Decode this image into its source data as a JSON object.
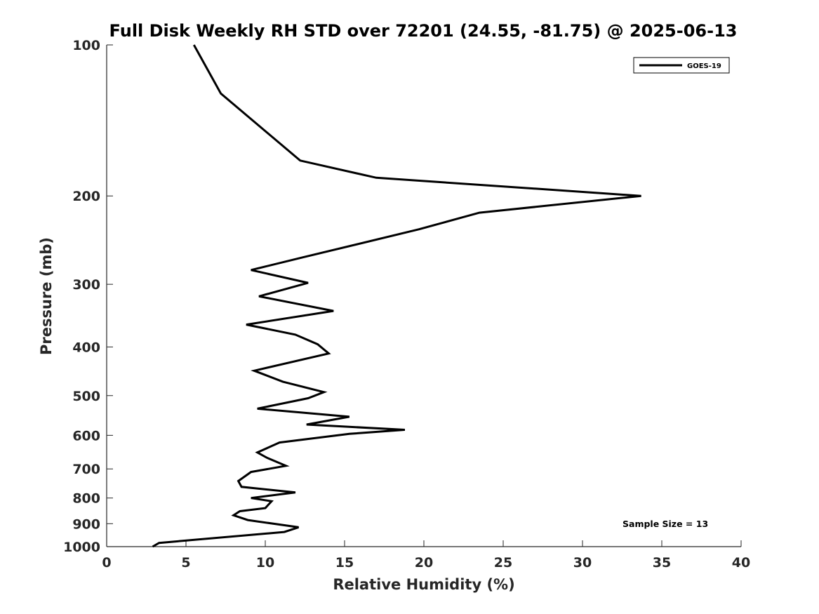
{
  "chart_data": {
    "type": "line",
    "title": "Full Disk Weekly RH STD over 72201 (24.55, -81.75) @ 2025-06-13",
    "xlabel": "Relative Humidity (%)",
    "ylabel": "Pressure (mb)",
    "xlim": [
      0,
      40
    ],
    "ylim": [
      100,
      1000
    ],
    "yscale": "log",
    "y_reversed": true,
    "x_ticks": [
      0,
      5,
      10,
      15,
      20,
      25,
      30,
      35,
      40
    ],
    "y_ticks": [
      100,
      200,
      300,
      400,
      500,
      600,
      700,
      800,
      900,
      1000
    ],
    "grid": false,
    "legend": {
      "placement": "top-right",
      "entries": [
        "GOES-19"
      ]
    },
    "annotation": "Sample Size = 13",
    "series": [
      {
        "name": "GOES-19",
        "color": "#000000",
        "points": [
          [
            5.5,
            100
          ],
          [
            7.2,
            125
          ],
          [
            12.2,
            170
          ],
          [
            17.0,
            184
          ],
          [
            33.7,
            200
          ],
          [
            23.5,
            216
          ],
          [
            19.7,
            233
          ],
          [
            12.4,
            265
          ],
          [
            9.1,
            281
          ],
          [
            12.7,
            298
          ],
          [
            9.6,
            317
          ],
          [
            14.3,
            339
          ],
          [
            8.8,
            361
          ],
          [
            11.9,
            378
          ],
          [
            13.3,
            395
          ],
          [
            14.0,
            412
          ],
          [
            9.3,
            446
          ],
          [
            11.1,
            469
          ],
          [
            13.7,
            492
          ],
          [
            12.7,
            506
          ],
          [
            9.5,
            531
          ],
          [
            15.3,
            551
          ],
          [
            12.6,
            571
          ],
          [
            18.8,
            585
          ],
          [
            15.3,
            596
          ],
          [
            10.9,
            620
          ],
          [
            9.5,
            649
          ],
          [
            10.1,
            665
          ],
          [
            11.3,
            690
          ],
          [
            9.1,
            710
          ],
          [
            8.3,
            740
          ],
          [
            8.5,
            760
          ],
          [
            11.9,
            780
          ],
          [
            9.1,
            800
          ],
          [
            10.4,
            812
          ],
          [
            10.0,
            838
          ],
          [
            8.4,
            850
          ],
          [
            8.0,
            866
          ],
          [
            8.9,
            885
          ],
          [
            12.1,
            915
          ],
          [
            11.2,
            935
          ],
          [
            3.3,
            983
          ],
          [
            2.9,
            1000
          ]
        ]
      }
    ]
  }
}
